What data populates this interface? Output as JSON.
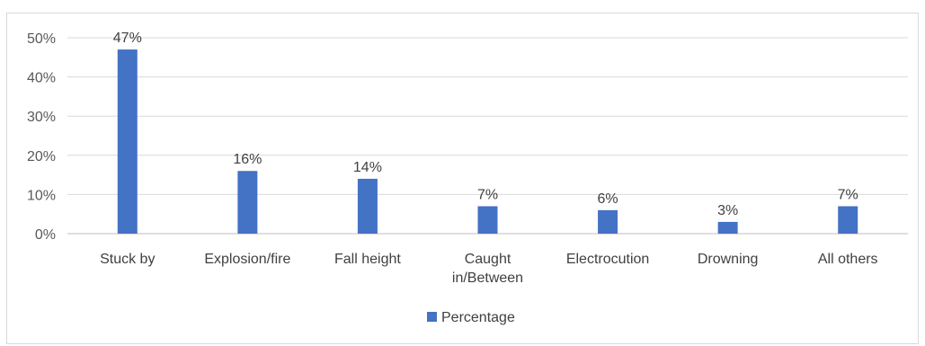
{
  "chart_data": {
    "type": "bar",
    "categories": [
      "Stuck by",
      "Explosion/fire",
      "Fall height",
      "Caught in/Between",
      "Electrocution",
      "Drowning",
      "All others"
    ],
    "category_lines": [
      [
        "Stuck by"
      ],
      [
        "Explosion/fire"
      ],
      [
        "Fall height"
      ],
      [
        "Caught",
        "in/Between"
      ],
      [
        "Electrocution"
      ],
      [
        "Drowning"
      ],
      [
        "All others"
      ]
    ],
    "series": [
      {
        "name": "Percentage",
        "values": [
          47,
          16,
          14,
          7,
          6,
          3,
          7
        ]
      }
    ],
    "data_labels": [
      "47%",
      "16%",
      "14%",
      "7%",
      "6%",
      "3%",
      "7%"
    ],
    "ylim": [
      0,
      50
    ],
    "yticks": [
      0,
      10,
      20,
      30,
      40,
      50
    ],
    "ytick_labels": [
      "0%",
      "10%",
      "20%",
      "30%",
      "40%",
      "50%"
    ],
    "grid": true,
    "legend_position": "bottom-center",
    "colors": {
      "bar": "#4472c4",
      "grid": "#d9d9d9",
      "axis": "#bfbfbf"
    }
  }
}
